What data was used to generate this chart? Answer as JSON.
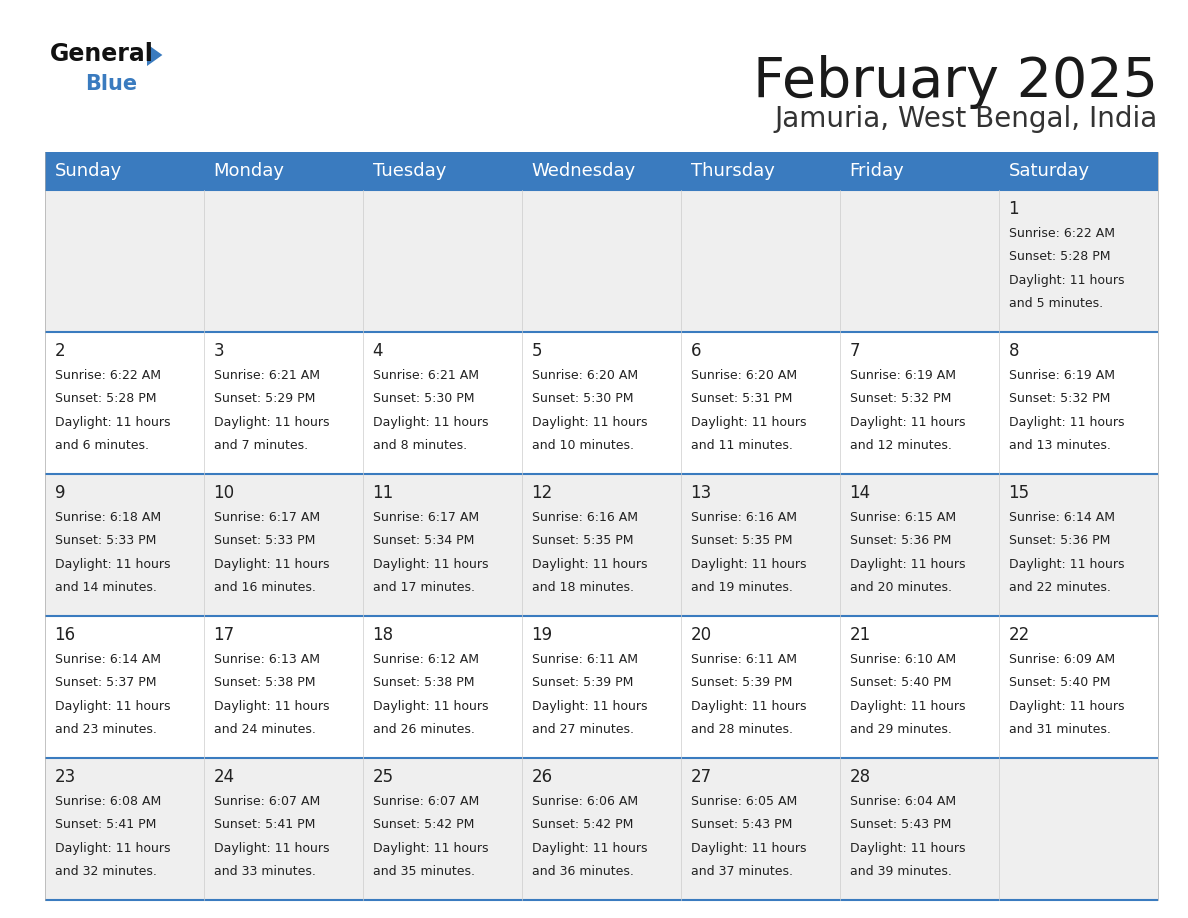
{
  "title": "February 2025",
  "subtitle": "Jamuria, West Bengal, India",
  "header_color": "#3a7bbf",
  "header_text_color": "#ffffff",
  "row_bg_odd": "#efefef",
  "row_bg_even": "#ffffff",
  "border_color": "#3a7bbf",
  "text_color": "#222222",
  "day_names": [
    "Sunday",
    "Monday",
    "Tuesday",
    "Wednesday",
    "Thursday",
    "Friday",
    "Saturday"
  ],
  "title_fontsize": 40,
  "subtitle_fontsize": 20,
  "day_header_fontsize": 13,
  "day_num_fontsize": 12,
  "cell_text_fontsize": 9,
  "logo_general_fontsize": 17,
  "logo_blue_fontsize": 15,
  "days": [
    {
      "date": 1,
      "col": 6,
      "row": 0,
      "sunrise": "6:22 AM",
      "sunset": "5:28 PM",
      "daylight": "11 hours and 5 minutes."
    },
    {
      "date": 2,
      "col": 0,
      "row": 1,
      "sunrise": "6:22 AM",
      "sunset": "5:28 PM",
      "daylight": "11 hours and 6 minutes."
    },
    {
      "date": 3,
      "col": 1,
      "row": 1,
      "sunrise": "6:21 AM",
      "sunset": "5:29 PM",
      "daylight": "11 hours and 7 minutes."
    },
    {
      "date": 4,
      "col": 2,
      "row": 1,
      "sunrise": "6:21 AM",
      "sunset": "5:30 PM",
      "daylight": "11 hours and 8 minutes."
    },
    {
      "date": 5,
      "col": 3,
      "row": 1,
      "sunrise": "6:20 AM",
      "sunset": "5:30 PM",
      "daylight": "11 hours and 10 minutes."
    },
    {
      "date": 6,
      "col": 4,
      "row": 1,
      "sunrise": "6:20 AM",
      "sunset": "5:31 PM",
      "daylight": "11 hours and 11 minutes."
    },
    {
      "date": 7,
      "col": 5,
      "row": 1,
      "sunrise": "6:19 AM",
      "sunset": "5:32 PM",
      "daylight": "11 hours and 12 minutes."
    },
    {
      "date": 8,
      "col": 6,
      "row": 1,
      "sunrise": "6:19 AM",
      "sunset": "5:32 PM",
      "daylight": "11 hours and 13 minutes."
    },
    {
      "date": 9,
      "col": 0,
      "row": 2,
      "sunrise": "6:18 AM",
      "sunset": "5:33 PM",
      "daylight": "11 hours and 14 minutes."
    },
    {
      "date": 10,
      "col": 1,
      "row": 2,
      "sunrise": "6:17 AM",
      "sunset": "5:33 PM",
      "daylight": "11 hours and 16 minutes."
    },
    {
      "date": 11,
      "col": 2,
      "row": 2,
      "sunrise": "6:17 AM",
      "sunset": "5:34 PM",
      "daylight": "11 hours and 17 minutes."
    },
    {
      "date": 12,
      "col": 3,
      "row": 2,
      "sunrise": "6:16 AM",
      "sunset": "5:35 PM",
      "daylight": "11 hours and 18 minutes."
    },
    {
      "date": 13,
      "col": 4,
      "row": 2,
      "sunrise": "6:16 AM",
      "sunset": "5:35 PM",
      "daylight": "11 hours and 19 minutes."
    },
    {
      "date": 14,
      "col": 5,
      "row": 2,
      "sunrise": "6:15 AM",
      "sunset": "5:36 PM",
      "daylight": "11 hours and 20 minutes."
    },
    {
      "date": 15,
      "col": 6,
      "row": 2,
      "sunrise": "6:14 AM",
      "sunset": "5:36 PM",
      "daylight": "11 hours and 22 minutes."
    },
    {
      "date": 16,
      "col": 0,
      "row": 3,
      "sunrise": "6:14 AM",
      "sunset": "5:37 PM",
      "daylight": "11 hours and 23 minutes."
    },
    {
      "date": 17,
      "col": 1,
      "row": 3,
      "sunrise": "6:13 AM",
      "sunset": "5:38 PM",
      "daylight": "11 hours and 24 minutes."
    },
    {
      "date": 18,
      "col": 2,
      "row": 3,
      "sunrise": "6:12 AM",
      "sunset": "5:38 PM",
      "daylight": "11 hours and 26 minutes."
    },
    {
      "date": 19,
      "col": 3,
      "row": 3,
      "sunrise": "6:11 AM",
      "sunset": "5:39 PM",
      "daylight": "11 hours and 27 minutes."
    },
    {
      "date": 20,
      "col": 4,
      "row": 3,
      "sunrise": "6:11 AM",
      "sunset": "5:39 PM",
      "daylight": "11 hours and 28 minutes."
    },
    {
      "date": 21,
      "col": 5,
      "row": 3,
      "sunrise": "6:10 AM",
      "sunset": "5:40 PM",
      "daylight": "11 hours and 29 minutes."
    },
    {
      "date": 22,
      "col": 6,
      "row": 3,
      "sunrise": "6:09 AM",
      "sunset": "5:40 PM",
      "daylight": "11 hours and 31 minutes."
    },
    {
      "date": 23,
      "col": 0,
      "row": 4,
      "sunrise": "6:08 AM",
      "sunset": "5:41 PM",
      "daylight": "11 hours and 32 minutes."
    },
    {
      "date": 24,
      "col": 1,
      "row": 4,
      "sunrise": "6:07 AM",
      "sunset": "5:41 PM",
      "daylight": "11 hours and 33 minutes."
    },
    {
      "date": 25,
      "col": 2,
      "row": 4,
      "sunrise": "6:07 AM",
      "sunset": "5:42 PM",
      "daylight": "11 hours and 35 minutes."
    },
    {
      "date": 26,
      "col": 3,
      "row": 4,
      "sunrise": "6:06 AM",
      "sunset": "5:42 PM",
      "daylight": "11 hours and 36 minutes."
    },
    {
      "date": 27,
      "col": 4,
      "row": 4,
      "sunrise": "6:05 AM",
      "sunset": "5:43 PM",
      "daylight": "11 hours and 37 minutes."
    },
    {
      "date": 28,
      "col": 5,
      "row": 4,
      "sunrise": "6:04 AM",
      "sunset": "5:43 PM",
      "daylight": "11 hours and 39 minutes."
    }
  ]
}
